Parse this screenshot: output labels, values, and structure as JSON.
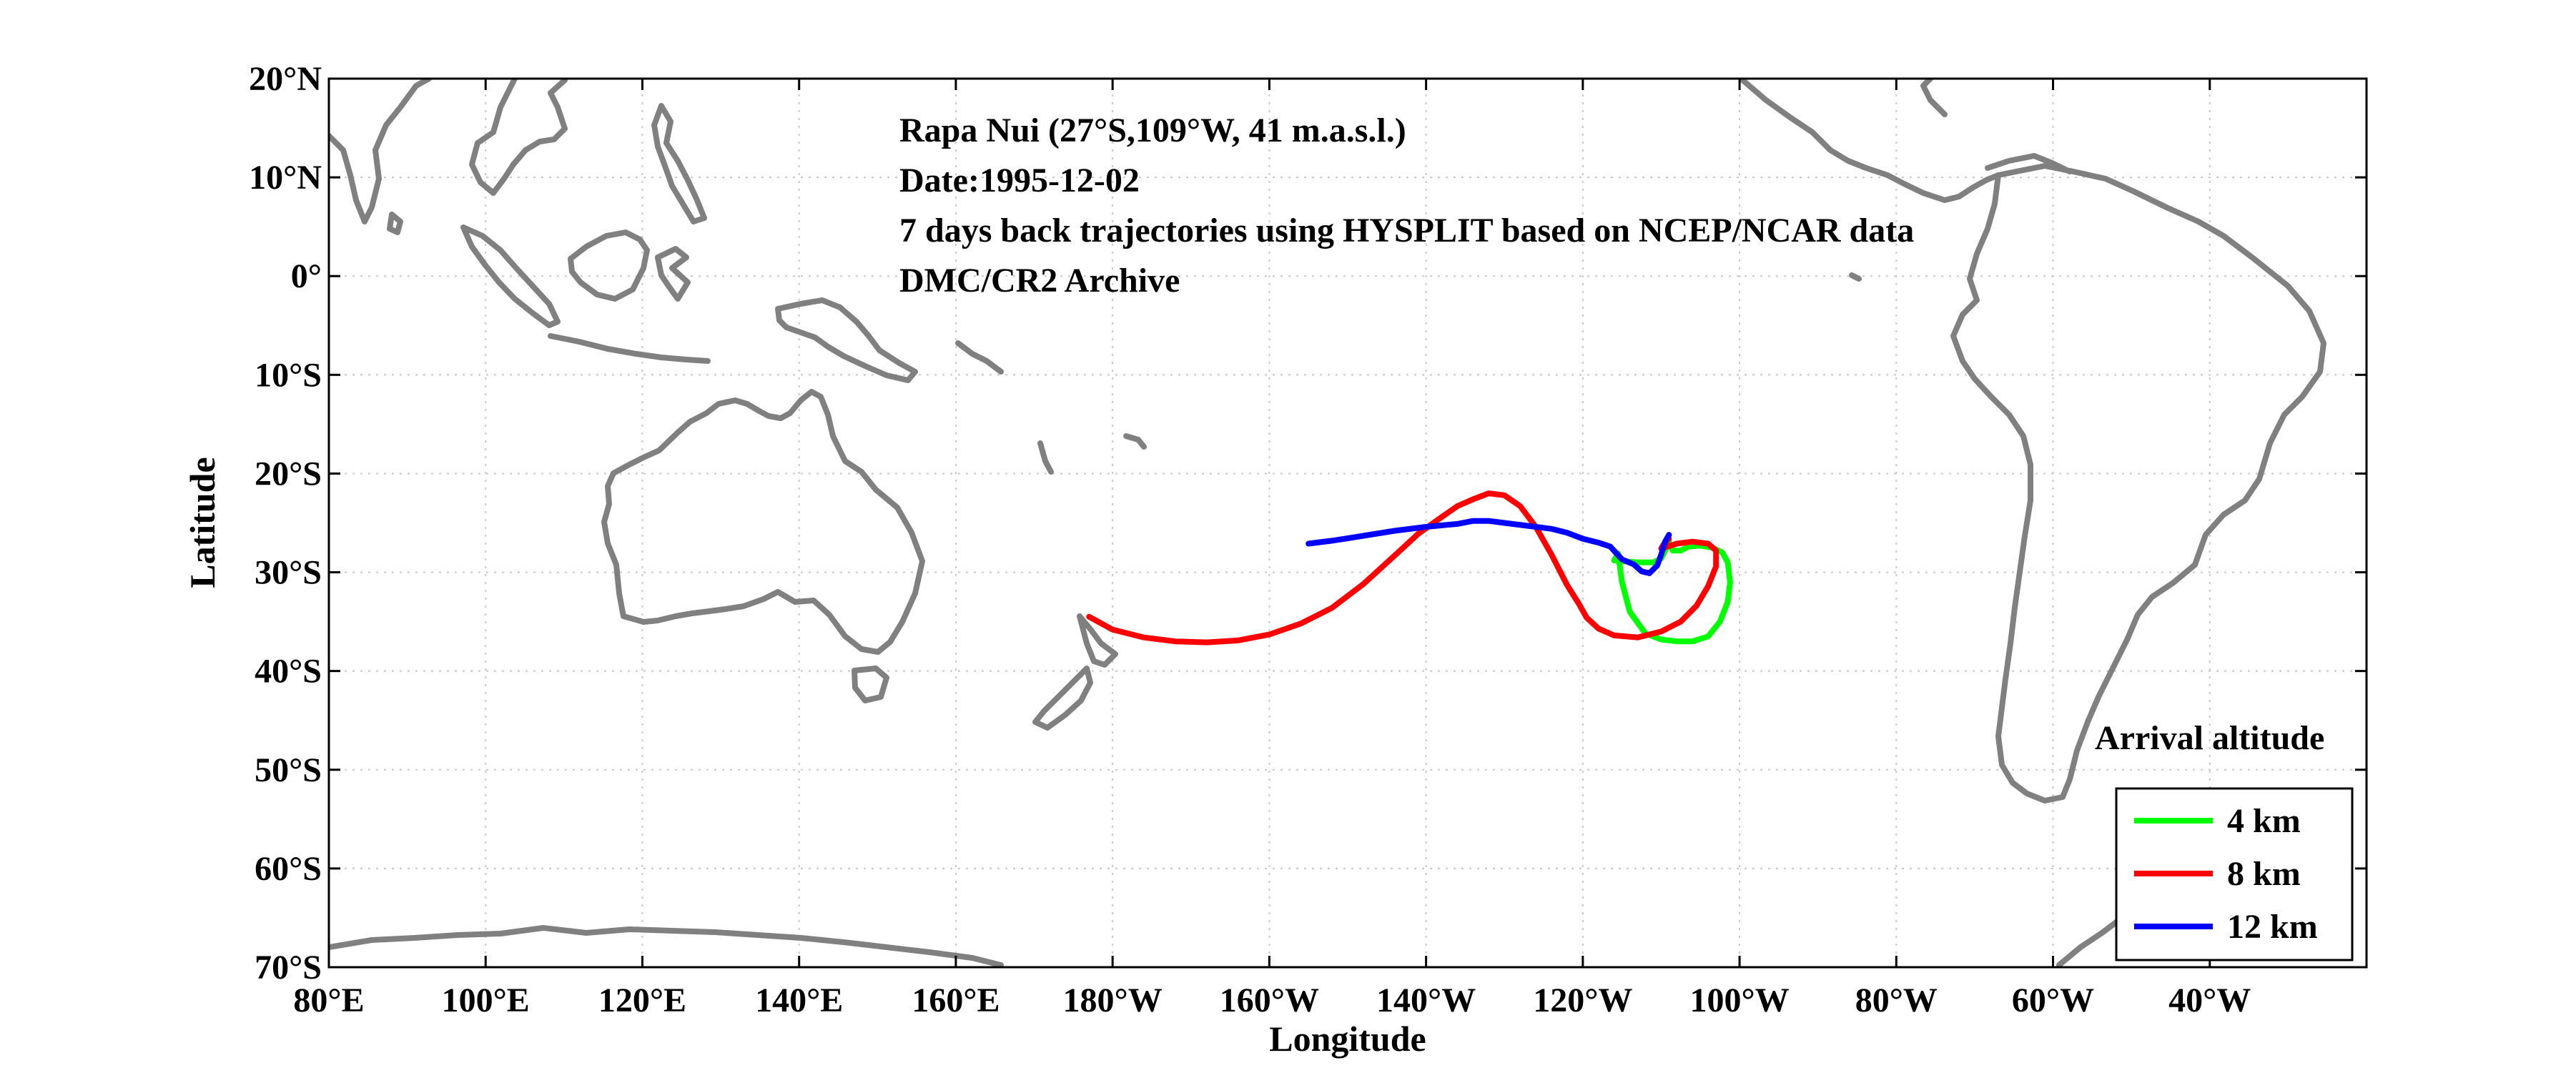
{
  "map": {
    "xlabel": "Longitude",
    "ylabel": "Latitude",
    "lon_range": [
      80,
      340
    ],
    "lat_range": [
      -70,
      20
    ],
    "grid": true,
    "x_ticks": [
      {
        "value": 80,
        "label": "80°E"
      },
      {
        "value": 100,
        "label": "100°E"
      },
      {
        "value": 120,
        "label": "120°E"
      },
      {
        "value": 140,
        "label": "140°E"
      },
      {
        "value": 160,
        "label": "160°E"
      },
      {
        "value": 180,
        "label": "180°W"
      },
      {
        "value": 200,
        "label": "160°W"
      },
      {
        "value": 220,
        "label": "140°W"
      },
      {
        "value": 240,
        "label": "120°W"
      },
      {
        "value": 260,
        "label": "100°W"
      },
      {
        "value": 280,
        "label": "80°W"
      },
      {
        "value": 300,
        "label": "60°W"
      },
      {
        "value": 320,
        "label": "40°W"
      }
    ],
    "y_ticks": [
      {
        "value": 20,
        "label": "20°N"
      },
      {
        "value": 10,
        "label": "10°N"
      },
      {
        "value": 0,
        "label": "0°"
      },
      {
        "value": -10,
        "label": "10°S"
      },
      {
        "value": -20,
        "label": "20°S"
      },
      {
        "value": -30,
        "label": "30°S"
      },
      {
        "value": -40,
        "label": "40°S"
      },
      {
        "value": -50,
        "label": "50°S"
      },
      {
        "value": -60,
        "label": "60°S"
      },
      {
        "value": -70,
        "label": "70°S"
      }
    ],
    "annotations": [
      "Rapa Nui (27°S,109°W, 41 m.a.s.l.)",
      "Date:1995-12-02",
      "7 days back trajectories using HYSPLIT based on NCEP/NCAR data",
      "DMC/CR2 Archive"
    ],
    "coast_color": "#808080"
  },
  "legend": {
    "title": "Arrival altitude",
    "entries": [
      {
        "label": "4 km",
        "color": "#00ff00"
      },
      {
        "label": "8 km",
        "color": "#ff0000"
      },
      {
        "label": "12 km",
        "color": "#0000ff"
      }
    ]
  },
  "chart_data": {
    "type": "line",
    "series": [
      {
        "name": "4 km",
        "color": "#00ff00",
        "lon": [
          251,
          250.5,
          250,
          249,
          248.6,
          247,
          244,
          244.5,
          245,
          246,
          248,
          250,
          252,
          254,
          256,
          257.5,
          258.5,
          258.8,
          258.5,
          257.8,
          256.5,
          255,
          253.5,
          252.5,
          251.5,
          251
        ],
        "lat": [
          -26.8,
          -27.8,
          -28.6,
          -29.0,
          -29.0,
          -29.0,
          -28.8,
          -28.1,
          -31,
          -34,
          -36.2,
          -36.8,
          -37.0,
          -37.0,
          -36.5,
          -35,
          -33,
          -31,
          -29,
          -28,
          -27.5,
          -27.3,
          -27.4,
          -27.8,
          -27.8,
          -27.0
        ]
      },
      {
        "name": "8 km",
        "color": "#ff0000",
        "lon": [
          177,
          180,
          184,
          188,
          192,
          196,
          200,
          204,
          208,
          212,
          216,
          219,
          222,
          224,
          226,
          228,
          230,
          232,
          234,
          236,
          238,
          239.5,
          240.5,
          242,
          244,
          247,
          250,
          252.5,
          254.5,
          256,
          257,
          257,
          256,
          254,
          252,
          250,
          250.2,
          250.6,
          251
        ],
        "lat": [
          -34.5,
          -35.8,
          -36.6,
          -37.0,
          -37.1,
          -36.9,
          -36.3,
          -35.2,
          -33.6,
          -31.2,
          -28.3,
          -26.1,
          -24.4,
          -23.3,
          -22.6,
          -22.0,
          -22.2,
          -23.3,
          -25.4,
          -28.2,
          -31.3,
          -33.2,
          -34.6,
          -35.7,
          -36.4,
          -36.6,
          -36.0,
          -35.0,
          -33.4,
          -31.4,
          -29.4,
          -27.8,
          -27.1,
          -26.9,
          -27.1,
          -27.6,
          -27.3,
          -26.9,
          -26.6
        ]
      },
      {
        "name": "12 km",
        "color": "#0000ff",
        "lon": [
          205,
          208,
          212,
          216,
          220,
          224,
          226,
          228,
          230,
          234,
          236,
          238,
          240,
          242,
          243.5,
          245,
          246.5,
          247.5,
          248.5,
          249.5,
          250,
          250.5,
          251
        ],
        "lat": [
          -27.1,
          -26.8,
          -26.3,
          -25.8,
          -25.4,
          -25.1,
          -24.8,
          -24.8,
          -25.0,
          -25.4,
          -25.6,
          -26.0,
          -26.6,
          -27.0,
          -27.4,
          -28.7,
          -29.2,
          -29.9,
          -30.1,
          -29.3,
          -28.2,
          -26.9,
          -26.2
        ]
      }
    ]
  }
}
